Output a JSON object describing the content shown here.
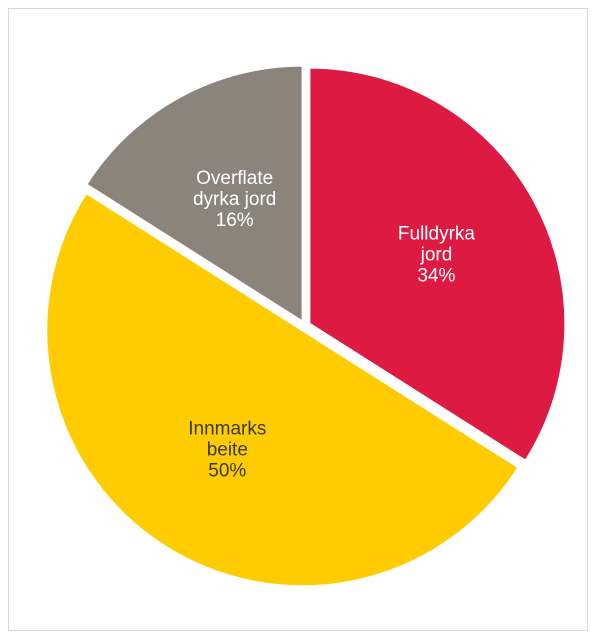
{
  "chart_data": {
    "type": "pie",
    "title": "",
    "start_angle_deg": 0,
    "direction": "clockwise",
    "slices": [
      {
        "name_lines": [
          "Fulldyrka",
          "jord"
        ],
        "value": 34,
        "percent_label": "34%",
        "color": "#dc1a42",
        "label_color": "#ffffff"
      },
      {
        "name_lines": [
          "Innmarks",
          "beite"
        ],
        "value": 50,
        "percent_label": "50%",
        "color": "#fecc00",
        "label_color": "#3a3a3a"
      },
      {
        "name_lines": [
          "Overflate",
          "dyrka jord"
        ],
        "value": 16,
        "percent_label": "16%",
        "color": "#8c837b",
        "label_color": "#ffffff"
      }
    ],
    "legend": "none",
    "grid": false
  }
}
